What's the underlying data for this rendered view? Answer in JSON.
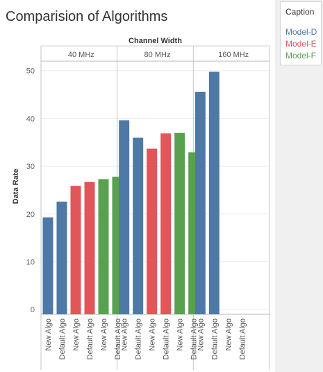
{
  "title": "Comparision of Algorithms",
  "legend": {
    "title": "Caption",
    "items": [
      {
        "label": "Model-D",
        "color": "#4e79a7"
      },
      {
        "label": "Model-E",
        "color": "#e15759"
      },
      {
        "label": "Model-F",
        "color": "#59a14f"
      }
    ]
  },
  "chart_data": {
    "type": "bar",
    "title": "Comparision of Algorithms",
    "group_axis_label": "Channel Width",
    "groups": [
      "40 MHz",
      "80 MHz",
      "160 MHz"
    ],
    "categories": [
      "New Algo",
      "Default Algo",
      "New Algo",
      "Default Algo",
      "New Algo",
      "Default Algo"
    ],
    "ylabel": "Data Rate",
    "ylim": [
      -1,
      52
    ],
    "yticks": [
      0,
      10,
      20,
      30,
      40,
      50
    ],
    "grid": true,
    "legend_position": "right",
    "bars": [
      {
        "group": "40 MHz",
        "category": "New Algo",
        "series": "Model-D",
        "value": 19.3
      },
      {
        "group": "40 MHz",
        "category": "Default Algo",
        "series": "Model-D",
        "value": 22.6
      },
      {
        "group": "40 MHz",
        "category": "New Algo",
        "series": "Model-E",
        "value": 25.9
      },
      {
        "group": "40 MHz",
        "category": "Default Algo",
        "series": "Model-E",
        "value": 26.7
      },
      {
        "group": "40 MHz",
        "category": "New Algo",
        "series": "Model-F",
        "value": 27.3
      },
      {
        "group": "40 MHz",
        "category": "Default Algo",
        "series": "Model-F",
        "value": 27.8
      },
      {
        "group": "80 MHz",
        "category": "New Algo",
        "series": "Model-D",
        "value": 39.6
      },
      {
        "group": "80 MHz",
        "category": "Default Algo",
        "series": "Model-D",
        "value": 36.0
      },
      {
        "group": "80 MHz",
        "category": "New Algo",
        "series": "Model-E",
        "value": 33.7
      },
      {
        "group": "80 MHz",
        "category": "Default Algo",
        "series": "Model-E",
        "value": 36.9
      },
      {
        "group": "80 MHz",
        "category": "New Algo",
        "series": "Model-F",
        "value": 37.0
      },
      {
        "group": "80 MHz",
        "category": "Default Algo",
        "series": "Model-F",
        "value": 32.9
      },
      {
        "group": "160 MHz",
        "category": "New Algo",
        "series": "Model-D",
        "value": 45.6
      },
      {
        "group": "160 MHz",
        "category": "Default Algo",
        "series": "Model-D",
        "value": 49.8
      },
      {
        "group": "160 MHz",
        "category": "New Algo",
        "series": null,
        "value": null
      },
      {
        "group": "160 MHz",
        "category": "Default Algo",
        "series": null,
        "value": null
      }
    ]
  }
}
